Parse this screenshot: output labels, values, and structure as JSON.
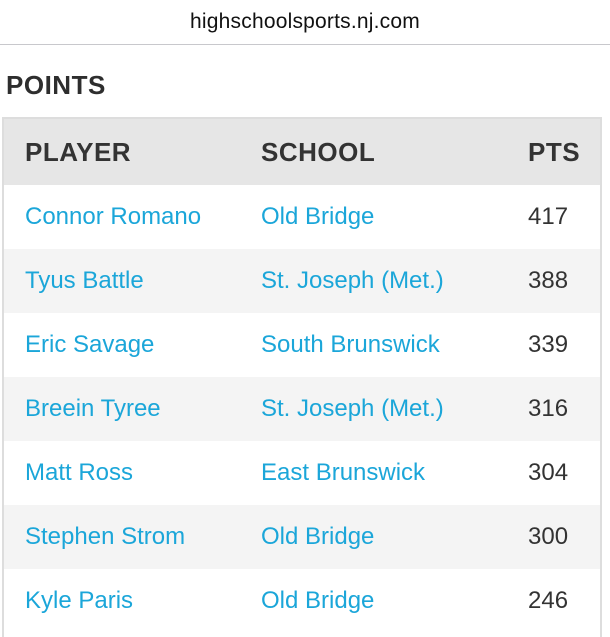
{
  "browser": {
    "url": "highschoolsports.nj.com"
  },
  "section": {
    "title": "POINTS"
  },
  "table": {
    "headers": {
      "player": "PLAYER",
      "school": "SCHOOL",
      "pts": "PTS"
    },
    "rows": [
      {
        "player": "Connor Romano",
        "school": "Old Bridge",
        "pts": "417"
      },
      {
        "player": "Tyus Battle",
        "school": "St. Joseph (Met.)",
        "pts": "388"
      },
      {
        "player": "Eric Savage",
        "school": "South Brunswick",
        "pts": "339"
      },
      {
        "player": "Breein Tyree",
        "school": "St. Joseph (Met.)",
        "pts": "316"
      },
      {
        "player": "Matt Ross",
        "school": "East Brunswick",
        "pts": "304"
      },
      {
        "player": "Stephen Strom",
        "school": "Old Bridge",
        "pts": "300"
      },
      {
        "player": "Kyle Paris",
        "school": "Old Bridge",
        "pts": "246"
      }
    ]
  },
  "colors": {
    "link": "#1ba6d9",
    "header_bg": "#e6e6e6",
    "row_alt_bg": "#f4f4f4"
  }
}
